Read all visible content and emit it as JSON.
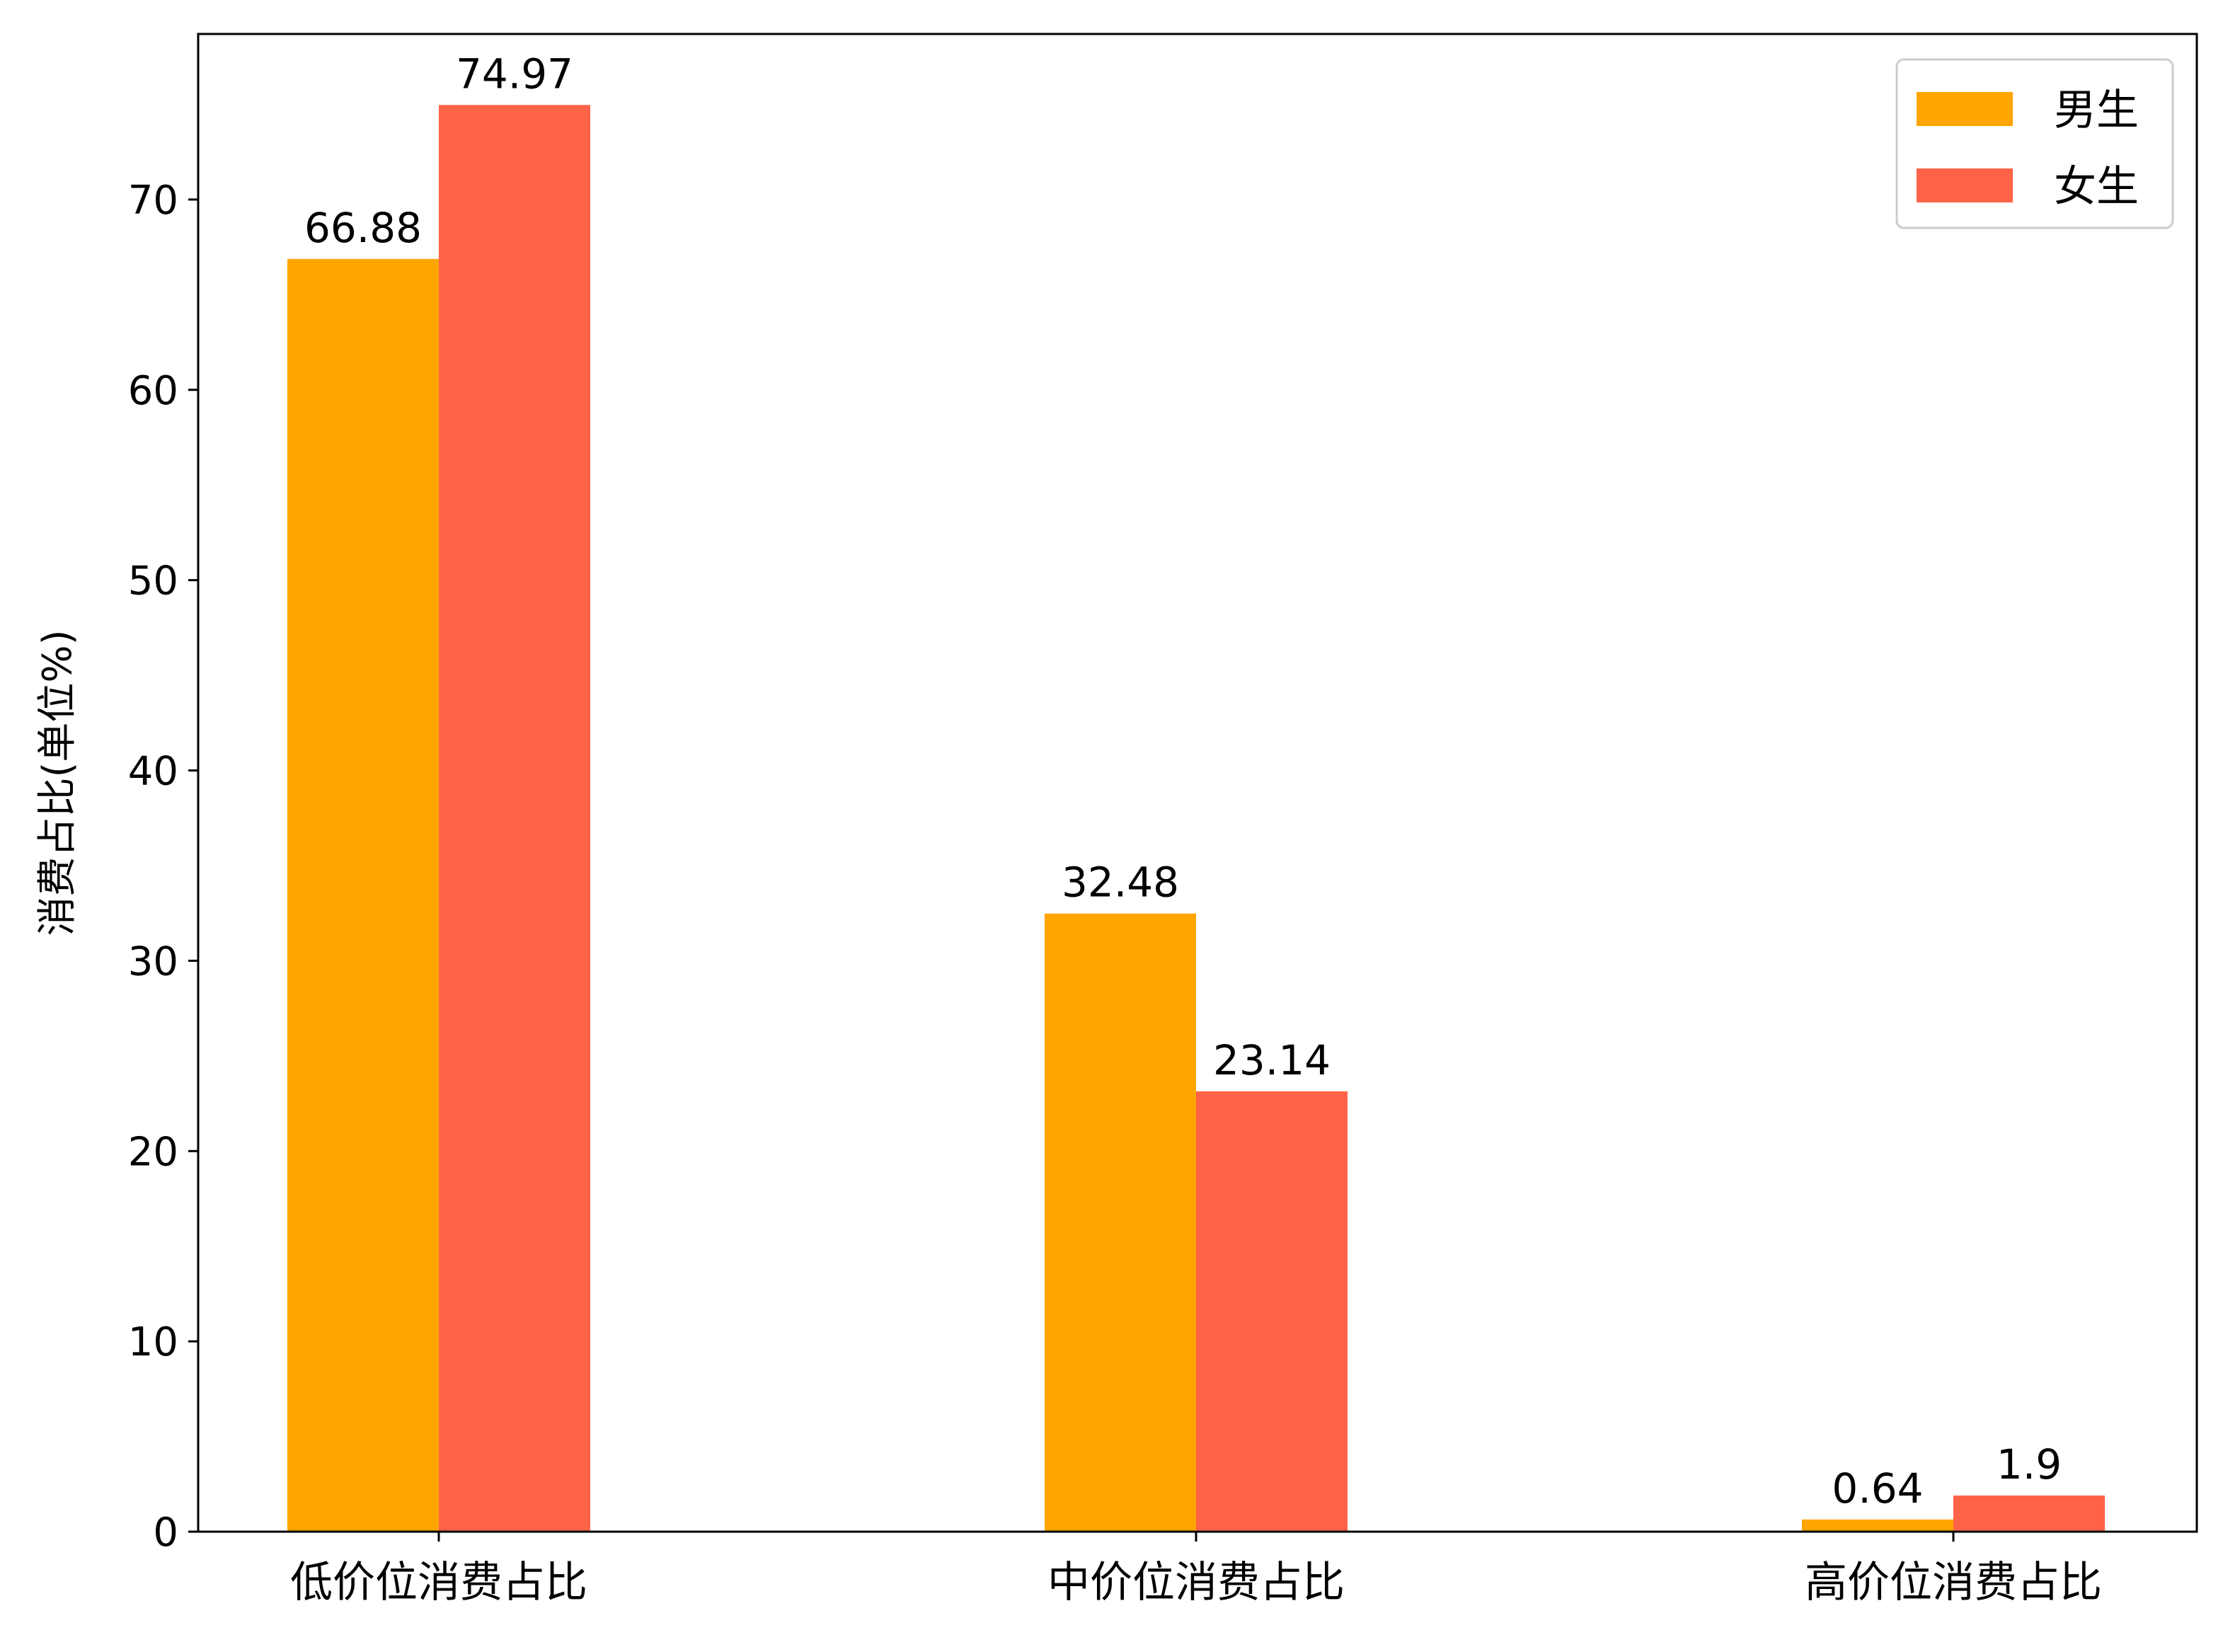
{
  "chart_data": {
    "type": "bar",
    "title": "",
    "xlabel": "",
    "ylabel": "消费占比(单位%)",
    "categories": [
      "低价位消费占比",
      "中价位消费占比",
      "高价位消费占比"
    ],
    "series": [
      {
        "name": "男生",
        "color": "#FFA500",
        "values": [
          66.88,
          32.48,
          0.64
        ],
        "labels": [
          "66.88",
          "32.48",
          "0.64"
        ]
      },
      {
        "name": "女生",
        "color": "#FF6347",
        "values": [
          74.97,
          23.14,
          1.9
        ],
        "labels": [
          "74.97",
          "23.14",
          "1.9"
        ]
      }
    ],
    "ylim": [
      0,
      78.7
    ],
    "yticks": [
      0,
      10,
      20,
      30,
      40,
      50,
      60,
      70
    ],
    "grid": false,
    "legend_position": "top-right"
  }
}
